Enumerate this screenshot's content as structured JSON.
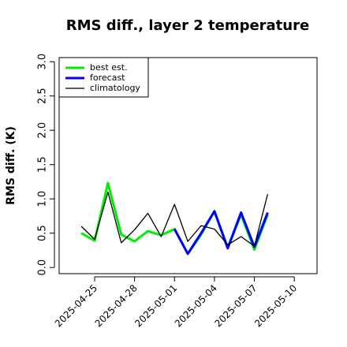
{
  "chart_data": {
    "type": "line",
    "title": "RMS diff., layer 2 temperature",
    "ylabel": "RMS diff. (K)",
    "x": [
      "2025-04-24",
      "2025-04-25",
      "2025-04-26",
      "2025-04-27",
      "2025-04-28",
      "2025-04-29",
      "2025-04-30",
      "2025-05-01",
      "2025-05-02",
      "2025-05-03",
      "2025-05-04",
      "2025-05-05",
      "2025-05-06",
      "2025-05-07",
      "2025-05-08"
    ],
    "series": [
      {
        "name": "best est.",
        "color": "#00ee00",
        "width": 3,
        "values": [
          0.5,
          0.39,
          1.23,
          0.48,
          0.38,
          0.53,
          0.47,
          0.56,
          0.2,
          0.48,
          0.82,
          0.29,
          0.77,
          0.26,
          0.77
        ]
      },
      {
        "name": "forecast",
        "color": "#0000ff",
        "width": 3,
        "values": [
          null,
          null,
          null,
          null,
          null,
          null,
          null,
          0.56,
          0.2,
          0.5,
          0.82,
          0.28,
          0.8,
          0.3,
          0.8
        ]
      },
      {
        "name": "climatology",
        "color": "#000000",
        "width": 1.3,
        "values": [
          0.6,
          0.41,
          1.1,
          0.36,
          0.55,
          0.79,
          0.45,
          0.92,
          0.38,
          0.61,
          0.56,
          0.33,
          0.45,
          0.31,
          1.07
        ]
      }
    ],
    "xlim": [
      "2025-04-22T08:00:00Z",
      "2025-05-11T17:00:00Z"
    ],
    "ylim": [
      -0.09,
      3.06
    ],
    "xticks": [
      "2025-04-25",
      "2025-04-28",
      "2025-05-01",
      "2025-05-04",
      "2025-05-07",
      "2025-05-10"
    ],
    "xtick_label_colors": [
      "#000000",
      "#000000",
      "#228b22",
      "#000000",
      "#000000",
      "#000000"
    ],
    "yticks": [
      {
        "value": 0,
        "label": "0.0"
      },
      {
        "value": 0.5,
        "label": "0.5"
      },
      {
        "value": 1,
        "label": "1.0"
      },
      {
        "value": 1.5,
        "label": "1.5"
      },
      {
        "value": 2,
        "label": "2.0"
      },
      {
        "value": 2.5,
        "label": "2.5"
      },
      {
        "value": 3,
        "label": "3.0"
      }
    ],
    "legend": "top-left"
  }
}
